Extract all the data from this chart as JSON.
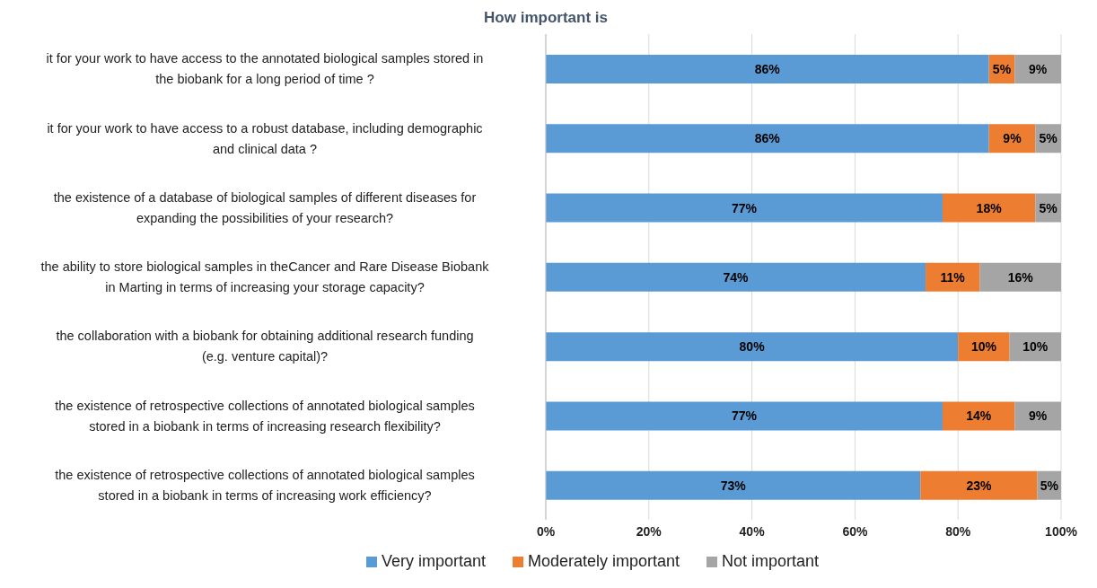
{
  "chart_data": {
    "type": "bar",
    "orientation": "horizontal",
    "stacked": true,
    "title": "How important is",
    "categories": [
      "it for your work to have access to the annotated biological samples stored in the biobank for a long period of time ?",
      "it for your work to have access to a robust database, including demographic and clinical data ?",
      "the existence of a database of biological samples of different diseases for expanding the possibilities of your research?",
      "the ability to store biological samples in theCancer and Rare Disease Biobank in Marting in terms of increasing your storage capacity?",
      "the collaboration with a biobank for obtaining additional research funding (e.g. venture capital)?",
      "the existence of retrospective collections of annotated biological samples stored in a biobank in terms of increasing research flexibility?",
      "the existence of retrospective collections of annotated biological samples stored in a biobank in terms of increasing work efficiency?"
    ],
    "series": [
      {
        "name": "Very important",
        "color": "#5b9bd5",
        "values": [
          86,
          86,
          77,
          73.7,
          80,
          77,
          72.7
        ],
        "value_labels": [
          "86%",
          "86%",
          "77%",
          "74%",
          "80%",
          "77%",
          "73%"
        ]
      },
      {
        "name": "Moderately important",
        "color": "#ed7d31",
        "values": [
          5,
          9,
          18,
          10.5,
          10,
          14,
          22.7
        ],
        "value_labels": [
          "5%",
          "9%",
          "18%",
          "11%",
          "10%",
          "14%",
          "23%"
        ]
      },
      {
        "name": "Not important",
        "color": "#a5a5a5",
        "values": [
          9,
          5,
          5,
          15.8,
          10,
          9,
          4.6
        ],
        "value_labels": [
          "9%",
          "5%",
          "5%",
          "16%",
          "10%",
          "9%",
          "5%"
        ]
      }
    ],
    "xlim": [
      0,
      100
    ],
    "xticks": [
      {
        "value": 0,
        "label": "0%"
      },
      {
        "value": 20,
        "label": "20%"
      },
      {
        "value": 40,
        "label": "40%"
      },
      {
        "value": 60,
        "label": "60%"
      },
      {
        "value": 80,
        "label": "80%"
      },
      {
        "value": 100,
        "label": "100%"
      }
    ],
    "grid": "x",
    "legend": "bottom"
  }
}
